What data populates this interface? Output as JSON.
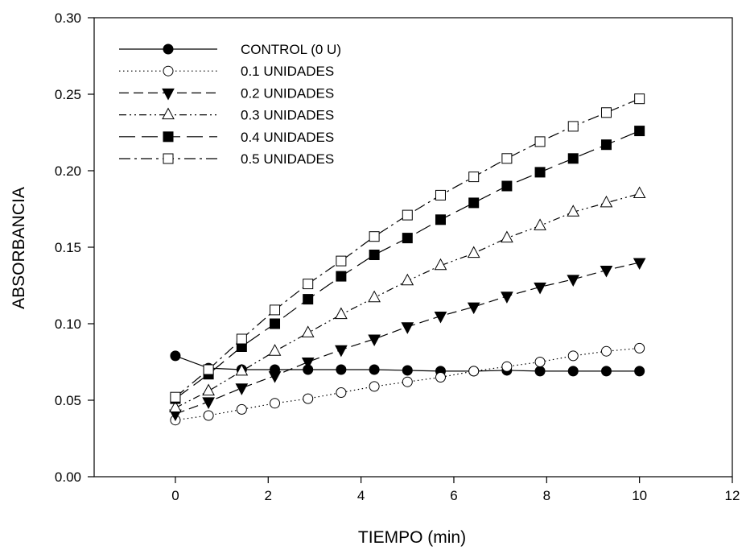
{
  "chart_data": {
    "type": "line",
    "xlabel": "TIEMPO (min)",
    "ylabel": "ABSORBANCIA",
    "xlim": [
      -1.75,
      12
    ],
    "ylim": [
      0,
      0.3
    ],
    "xticks": [
      0,
      2,
      4,
      6,
      8,
      10,
      12
    ],
    "yticks": [
      0.0,
      0.05,
      0.1,
      0.15,
      0.2,
      0.25,
      0.3
    ],
    "xtick_labels": [
      "0",
      "2",
      "4",
      "6",
      "8",
      "10",
      "12"
    ],
    "ytick_labels": [
      "0.00",
      "0.05",
      "0.10",
      "0.15",
      "0.20",
      "0.25",
      "0.30"
    ],
    "grid": false,
    "legend_position": "top-left",
    "x": [
      0,
      0.714,
      1.429,
      2.143,
      2.857,
      3.571,
      4.286,
      5.0,
      5.714,
      6.429,
      7.143,
      7.857,
      8.571,
      9.286,
      10.0
    ],
    "series": [
      {
        "name": "CONTROL (0 U)",
        "marker": "circle-filled",
        "line_style": "solid",
        "values": [
          0.079,
          0.071,
          0.07,
          0.07,
          0.07,
          0.07,
          0.07,
          0.0695,
          0.069,
          0.069,
          0.0695,
          0.069,
          0.069,
          0.069,
          0.069
        ]
      },
      {
        "name": "0.1 UNIDADES",
        "marker": "circle-open",
        "line_style": "dotted",
        "values": [
          0.037,
          0.04,
          0.044,
          0.048,
          0.051,
          0.055,
          0.059,
          0.062,
          0.065,
          0.069,
          0.072,
          0.075,
          0.079,
          0.082,
          0.084
        ]
      },
      {
        "name": "0.2 UNIDADES",
        "marker": "triangle-down-filled",
        "line_style": "dashed",
        "values": [
          0.041,
          0.049,
          0.058,
          0.066,
          0.075,
          0.083,
          0.09,
          0.098,
          0.105,
          0.111,
          0.118,
          0.124,
          0.129,
          0.135,
          0.14
        ]
      },
      {
        "name": "0.3 UNIDADES",
        "marker": "triangle-up-open",
        "line_style": "dash-dot-dot",
        "values": [
          0.045,
          0.056,
          0.069,
          0.082,
          0.094,
          0.106,
          0.117,
          0.128,
          0.138,
          0.146,
          0.156,
          0.164,
          0.173,
          0.179,
          0.185
        ]
      },
      {
        "name": "0.4 UNIDADES",
        "marker": "square-filled",
        "line_style": "long-dash",
        "values": [
          0.051,
          0.067,
          0.085,
          0.1,
          0.116,
          0.131,
          0.145,
          0.156,
          0.168,
          0.179,
          0.19,
          0.199,
          0.208,
          0.217,
          0.226
        ]
      },
      {
        "name": "0.5 UNIDADES",
        "marker": "square-open",
        "line_style": "dash-dot",
        "values": [
          0.052,
          0.07,
          0.09,
          0.109,
          0.126,
          0.141,
          0.157,
          0.171,
          0.184,
          0.196,
          0.208,
          0.219,
          0.229,
          0.238,
          0.247
        ]
      }
    ]
  }
}
